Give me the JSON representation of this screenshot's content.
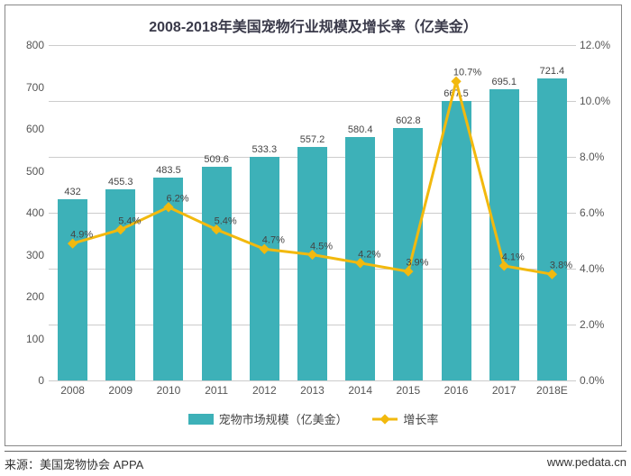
{
  "chart": {
    "type": "bar+line",
    "title": "2008-2018年美国宠物行业规模及增长率（亿美金）",
    "title_fontsize": 16,
    "title_color": "#3a3a4a",
    "background_color": "#ffffff",
    "grid_color": "#cccccc",
    "categories": [
      "2008",
      "2009",
      "2010",
      "2011",
      "2012",
      "2013",
      "2014",
      "2015",
      "2016",
      "2017",
      "2018E"
    ],
    "bar_series": {
      "label": "宠物市场规模（亿美金）",
      "color": "#3db1b8",
      "values": [
        432,
        455.3,
        483.5,
        509.6,
        533.3,
        557.2,
        580.4,
        602.8,
        667.5,
        695.1,
        721.4
      ],
      "bar_width": 0.62
    },
    "line_series": {
      "label": "增长率",
      "color": "#f2b90e",
      "marker": "diamond",
      "line_width": 3,
      "values_pct": [
        4.9,
        5.4,
        6.2,
        5.4,
        4.7,
        4.5,
        4.2,
        3.9,
        10.7,
        4.1,
        3.8
      ],
      "labels": [
        "4.9%",
        "5.4%",
        "6.2%",
        "5.4%",
        "4.7%",
        "4.5%",
        "4.2%",
        "3.9%",
        "10.7%",
        "4.1%",
        "3.8%"
      ]
    },
    "y_left": {
      "min": 0,
      "max": 800,
      "step": 100,
      "ticks": [
        0,
        100,
        200,
        300,
        400,
        500,
        600,
        700,
        800
      ]
    },
    "y_right": {
      "min": 0,
      "max": 12,
      "step": 2,
      "ticks": [
        "0.0%",
        "2.0%",
        "4.0%",
        "6.0%",
        "8.0%",
        "10.0%",
        "12.0%"
      ]
    },
    "axis_label_fontsize": 12,
    "axis_label_color": "#555555",
    "footer": {
      "source": "来源：美国宠物协会 APPA",
      "watermark": "www.pedata.cn"
    }
  }
}
